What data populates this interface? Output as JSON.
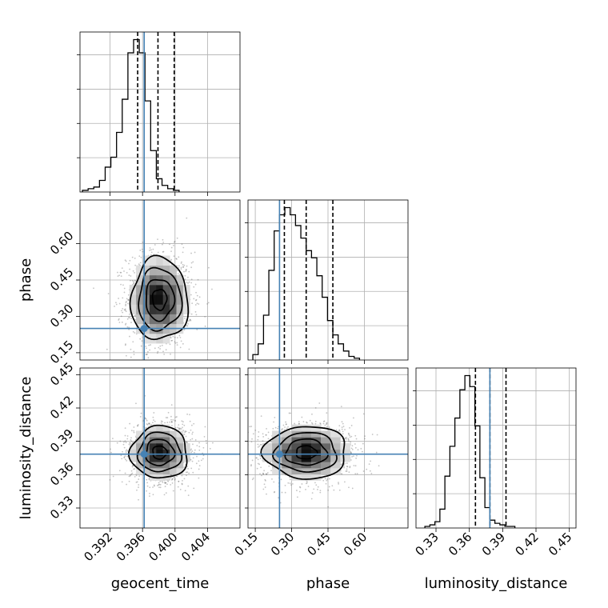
{
  "chart_data": {
    "type": "corner",
    "parameters": [
      {
        "name": "geocent_time",
        "label": "geocent_time",
        "range": [
          0.3883,
          0.408
        ],
        "ticks": [
          0.392,
          0.396,
          0.4,
          0.404
        ],
        "tick_labels": [
          "0.392",
          "0.396",
          "0.400",
          "0.404"
        ],
        "truth": 0.3962,
        "quantiles": [
          0.3954,
          0.3979,
          0.3999
        ],
        "hist_bin_width": 0.0007,
        "hist_edges_start": 0.3886,
        "hist": [
          0.01,
          0.02,
          0.03,
          0.07,
          0.15,
          0.21,
          0.36,
          0.56,
          0.84,
          0.92,
          0.84,
          0.55,
          0.25,
          0.08,
          0.04,
          0.02,
          0.01
        ]
      },
      {
        "name": "phase",
        "label": "phase",
        "range": [
          0.12,
          0.78
        ],
        "ticks": [
          0.15,
          0.3,
          0.45,
          0.6
        ],
        "tick_labels": [
          "0.15",
          "0.30",
          "0.45",
          "0.60"
        ],
        "truth": 0.25,
        "quantiles": [
          0.27,
          0.36,
          0.47
        ],
        "hist_bin_width": 0.022,
        "hist_edges_start": 0.14,
        "hist": [
          0.03,
          0.09,
          0.25,
          0.5,
          0.72,
          0.81,
          0.85,
          0.81,
          0.75,
          0.68,
          0.61,
          0.57,
          0.47,
          0.35,
          0.22,
          0.14,
          0.09,
          0.05,
          0.02,
          0.01
        ]
      },
      {
        "name": "luminosity_distance",
        "label": "luminosity_distance",
        "range": [
          0.312,
          0.456
        ],
        "ticks": [
          0.33,
          0.36,
          0.39,
          0.42,
          0.45
        ],
        "tick_labels": [
          "0.33",
          "0.36",
          "0.39",
          "0.42",
          "0.45"
        ],
        "truth": 0.3785,
        "quantiles": [
          0.3655,
          0.3785,
          0.393
        ],
        "hist_bin_width": 0.0045,
        "hist_edges_start": 0.32,
        "hist": [
          0.01,
          0.02,
          0.04,
          0.12,
          0.33,
          0.52,
          0.7,
          0.88,
          0.97,
          0.9,
          0.65,
          0.32,
          0.13,
          0.05,
          0.03,
          0.02,
          0.01,
          0.01
        ]
      }
    ],
    "panels_2d": [
      {
        "x": "geocent_time",
        "y": "phase",
        "center": [
          0.3981,
          0.37
        ],
        "sigma": [
          0.00175,
          0.085
        ],
        "levels_sigma": [
          0.5,
          1,
          1.5,
          2
        ]
      },
      {
        "x": "geocent_time",
        "y": "luminosity_distance",
        "center": [
          0.3981,
          0.38
        ],
        "sigma": [
          0.00175,
          0.0118
        ],
        "levels_sigma": [
          0.5,
          1,
          1.5,
          2
        ]
      },
      {
        "x": "phase",
        "y": "luminosity_distance",
        "center": [
          0.36,
          0.38
        ],
        "sigma": [
          0.085,
          0.0118
        ],
        "levels_sigma": [
          0.5,
          1,
          1.5,
          2
        ]
      }
    ],
    "truth_color": "#4682b4",
    "grid": true
  }
}
